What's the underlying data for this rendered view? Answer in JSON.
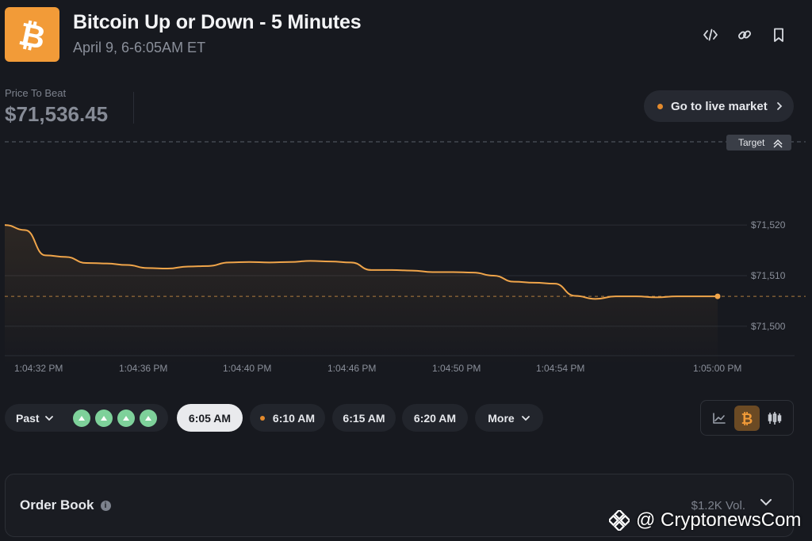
{
  "header": {
    "title": "Bitcoin Up or Down - 5 Minutes",
    "subtitle": "April 9, 6-6:05AM ET",
    "logo_icon": "bitcoin-icon",
    "actions": [
      "embed-icon",
      "link-icon",
      "bookmark-icon"
    ]
  },
  "price_to_beat": {
    "label": "Price To Beat",
    "value": "$71,536.45"
  },
  "live_button": {
    "label": "Go to live market"
  },
  "chart": {
    "target_label": "Target",
    "accent": "#f0a54a"
  },
  "chart_data": {
    "type": "line",
    "ylim": [
      71497,
      71536.45
    ],
    "y_ticks": [
      "$71,520",
      "$71,510",
      "$71,500"
    ],
    "y_tick_values": [
      71520,
      71510,
      71500
    ],
    "x_ticks": [
      "1:04:32 PM",
      "1:04:36 PM",
      "1:04:40 PM",
      "1:04:46 PM",
      "1:04:50 PM",
      "1:04:54 PM",
      "1:05:00 PM"
    ],
    "target_value": 71536.45,
    "current_value": 71505.9,
    "series": [
      {
        "x": [
          0,
          1,
          2,
          3,
          4,
          5,
          6,
          7,
          8,
          9,
          10,
          11,
          12,
          13,
          14,
          15,
          16,
          17,
          18,
          19,
          20,
          21,
          22,
          23,
          24,
          25,
          26,
          27,
          28,
          29,
          30,
          31,
          32,
          33,
          34,
          35
        ],
        "values": [
          71520,
          71519,
          71514,
          71513.7,
          71512.5,
          71512.4,
          71512.1,
          71511.5,
          71511.4,
          71511.8,
          71511.9,
          71512.6,
          71512.7,
          71512.6,
          71512.7,
          71512.9,
          71512.8,
          71512.6,
          71511.1,
          71511.1,
          71511.0,
          71510.7,
          71510.7,
          71510.6,
          71510.0,
          71508.8,
          71508.6,
          71508.4,
          71506.0,
          71505.4,
          71505.9,
          71505.9,
          71505.7,
          71505.9,
          71505.9,
          71505.9
        ]
      }
    ]
  },
  "timeline": {
    "past_label": "Past",
    "past_results": [
      "up",
      "up",
      "up",
      "up"
    ],
    "chips": [
      {
        "label": "6:05 AM",
        "active": true,
        "live": false
      },
      {
        "label": "6:10 AM",
        "active": false,
        "live": true
      },
      {
        "label": "6:15 AM",
        "active": false,
        "live": false
      },
      {
        "label": "6:20 AM",
        "active": false,
        "live": false
      }
    ],
    "more_label": "More"
  },
  "chart_toggle": [
    "line-chart-icon",
    "bitcoin-icon",
    "candlestick-icon"
  ],
  "order_book": {
    "title": "Order Book",
    "volume": "$1.2K Vol."
  },
  "watermark": {
    "text": "@ CryptonewsCom"
  }
}
